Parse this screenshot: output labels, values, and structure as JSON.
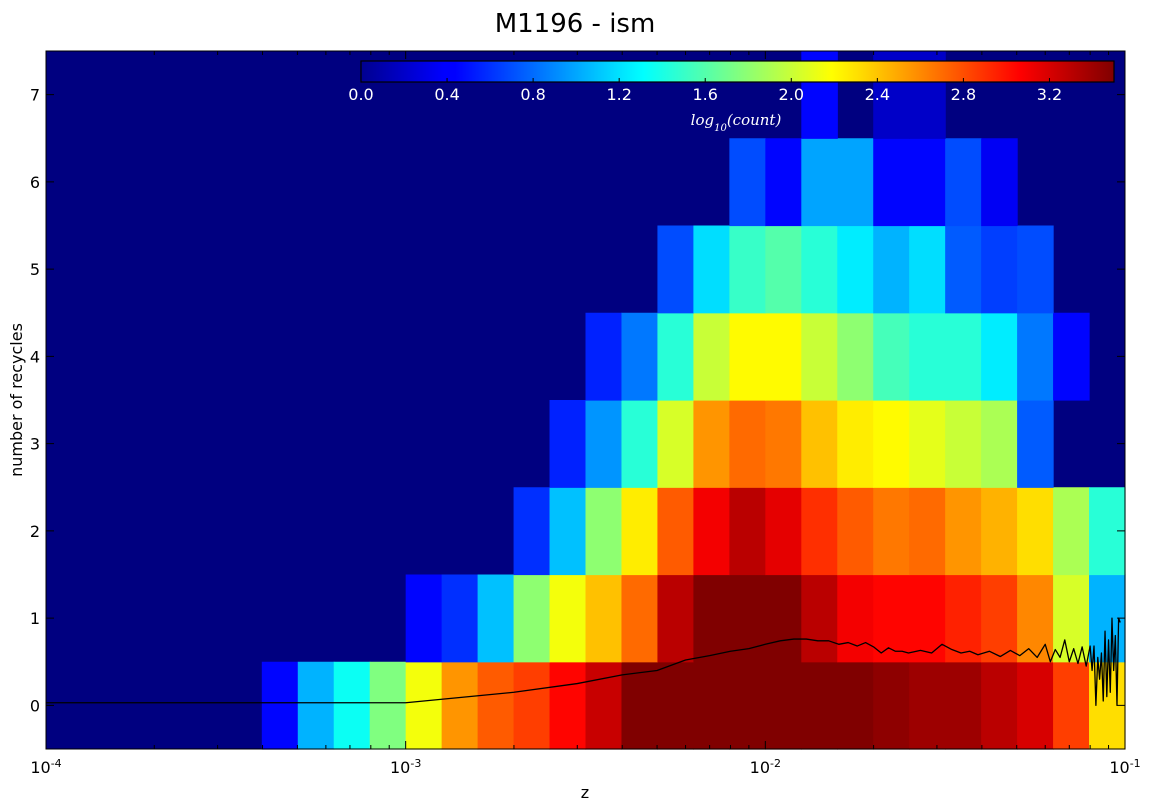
{
  "chart_data": {
    "type": "heatmap",
    "title": "M1196 - ism",
    "xlabel": "z",
    "ylabel": "number of recycles",
    "xscale": "log",
    "xlim": [
      0.0001,
      0.1
    ],
    "ylim": [
      -0.5,
      7.5
    ],
    "x_tick_labels": [
      {
        "base": "10",
        "exp": "-4"
      },
      {
        "base": "10",
        "exp": "-3"
      },
      {
        "base": "10",
        "exp": "-2"
      },
      {
        "base": "10",
        "exp": "-1"
      }
    ],
    "x_tick_values": [
      0.0001,
      0.001,
      0.01,
      0.1
    ],
    "y_tick_labels": [
      "0",
      "1",
      "2",
      "3",
      "4",
      "5",
      "6",
      "7"
    ],
    "y_tick_values": [
      0,
      1,
      2,
      3,
      4,
      5,
      6,
      7
    ],
    "x_bin_edges_log10": [
      -4.0,
      -3.9,
      -3.8,
      -3.7,
      -3.6,
      -3.5,
      -3.4,
      -3.3,
      -3.2,
      -3.1,
      -3.0,
      -2.9,
      -2.8,
      -2.7,
      -2.6,
      -2.5,
      -2.4,
      -2.3,
      -2.2,
      -2.1,
      -2.0,
      -1.9,
      -1.8,
      -1.7,
      -1.6,
      -1.5,
      -1.4,
      -1.3,
      -1.2,
      -1.1,
      -1.0
    ],
    "y_bin_edges": [
      -0.5,
      0.5,
      1.5,
      2.5,
      3.5,
      4.5,
      5.5,
      6.5,
      7.5
    ],
    "colorbar": {
      "label": "log10(count)",
      "label_main": "log",
      "label_sub": "10",
      "label_rest": "(count)",
      "range": [
        0,
        3.5
      ],
      "ticks": [
        "0.0",
        "0.4",
        "0.8",
        "1.2",
        "1.6",
        "2.0",
        "2.4",
        "2.8",
        "3.2"
      ],
      "tick_values": [
        0.0,
        0.4,
        0.8,
        1.2,
        1.6,
        2.0,
        2.4,
        2.8,
        3.2
      ],
      "colormap": "jet",
      "placement": "inset top"
    },
    "log10_count_grid_rows_by_recycles": [
      [
        0,
        0,
        0,
        0,
        0,
        0,
        0.45,
        1.05,
        1.35,
        1.75,
        2.15,
        2.55,
        2.75,
        2.85,
        3.05,
        3.25,
        3.5,
        3.5,
        3.5,
        3.5,
        3.5,
        3.5,
        3.5,
        3.45,
        3.4,
        3.4,
        3.3,
        3.2,
        2.85,
        2.3,
        1.4
      ],
      [
        0,
        0,
        0,
        0,
        0,
        0,
        0,
        0,
        0,
        0,
        0.45,
        0.6,
        1.1,
        1.8,
        2.15,
        2.4,
        2.7,
        3.3,
        3.5,
        3.5,
        3.5,
        3.3,
        3.1,
        3.05,
        3.05,
        2.95,
        2.85,
        2.6,
        2.05,
        1.05
      ],
      [
        0,
        0,
        0,
        0,
        0,
        0,
        0,
        0,
        0,
        0,
        0,
        0,
        0,
        0.6,
        1.1,
        1.8,
        2.25,
        2.75,
        3.1,
        3.3,
        3.15,
        2.9,
        2.75,
        2.65,
        2.7,
        2.55,
        2.45,
        2.3,
        1.9,
        1.45
      ],
      [
        0,
        0,
        0,
        0,
        0,
        0,
        0,
        0,
        0,
        0,
        0,
        0,
        0,
        0,
        0.55,
        0.95,
        1.45,
        2.05,
        2.55,
        2.7,
        2.65,
        2.4,
        2.25,
        2.2,
        2.1,
        2.0,
        1.9,
        0.75
      ],
      [
        0,
        0,
        0,
        0,
        0,
        0,
        0,
        0,
        0,
        0,
        0,
        0,
        0,
        0,
        0,
        0.55,
        0.85,
        1.45,
        2.0,
        2.2,
        2.2,
        2.0,
        1.8,
        1.55,
        1.45,
        1.45,
        1.25,
        0.85,
        0.45
      ],
      [
        0,
        0,
        0,
        0,
        0,
        0,
        0,
        0,
        0,
        0,
        0,
        0,
        0,
        0,
        0,
        0,
        0,
        0.7,
        1.2,
        1.5,
        1.6,
        1.45,
        1.25,
        1.05,
        1.2,
        0.75,
        0.65,
        0.7
      ],
      [
        0,
        0,
        0,
        0,
        0,
        0,
        0,
        0,
        0,
        0,
        0,
        0,
        0,
        0,
        0,
        0,
        0,
        0,
        0,
        0.7,
        0.45,
        1.0,
        1.0,
        0.45,
        0.45,
        0.7,
        0.4
      ],
      [
        0,
        0,
        0,
        0,
        0,
        0,
        0,
        0,
        0,
        0,
        0,
        0,
        0,
        0,
        0,
        0,
        0,
        0,
        0,
        0,
        0,
        0.45,
        0.0,
        0.25,
        0.25,
        0.0
      ]
    ],
    "series": [
      {
        "type": "line",
        "color": "#000000",
        "x": [
          0.0001,
          0.0002,
          0.0005,
          0.001,
          0.0015,
          0.002,
          0.003,
          0.004,
          0.005,
          0.006,
          0.007,
          0.008,
          0.009,
          0.01,
          0.011,
          0.012,
          0.013,
          0.014,
          0.015,
          0.016,
          0.017,
          0.018,
          0.019,
          0.02,
          0.021,
          0.022,
          0.023,
          0.024,
          0.025,
          0.027,
          0.029,
          0.031,
          0.033,
          0.035,
          0.037,
          0.039,
          0.042,
          0.045,
          0.048,
          0.051,
          0.054,
          0.057,
          0.06,
          0.062,
          0.064,
          0.066,
          0.068,
          0.07,
          0.072,
          0.074,
          0.076,
          0.078,
          0.08,
          0.081,
          0.082,
          0.083,
          0.084,
          0.085,
          0.086,
          0.087,
          0.088,
          0.089,
          0.09,
          0.091,
          0.092,
          0.093,
          0.094,
          0.095,
          0.096,
          0.097
        ],
        "y": [
          0.03,
          0.03,
          0.03,
          0.03,
          0.1,
          0.15,
          0.25,
          0.35,
          0.4,
          0.52,
          0.57,
          0.62,
          0.65,
          0.7,
          0.74,
          0.76,
          0.76,
          0.74,
          0.74,
          0.7,
          0.72,
          0.68,
          0.72,
          0.67,
          0.6,
          0.66,
          0.62,
          0.62,
          0.6,
          0.63,
          0.6,
          0.7,
          0.64,
          0.6,
          0.62,
          0.58,
          0.62,
          0.56,
          0.63,
          0.57,
          0.65,
          0.55,
          0.7,
          0.5,
          0.64,
          0.55,
          0.75,
          0.5,
          0.65,
          0.48,
          0.67,
          0.45,
          0.68,
          0.4,
          0.68,
          0.0,
          0.55,
          0.3,
          0.6,
          0.05,
          0.85,
          0.1,
          0.75,
          0.15,
          1.0,
          0.4,
          0.8,
          0.0,
          1.0,
          0.95
        ]
      }
    ],
    "grid": false
  }
}
